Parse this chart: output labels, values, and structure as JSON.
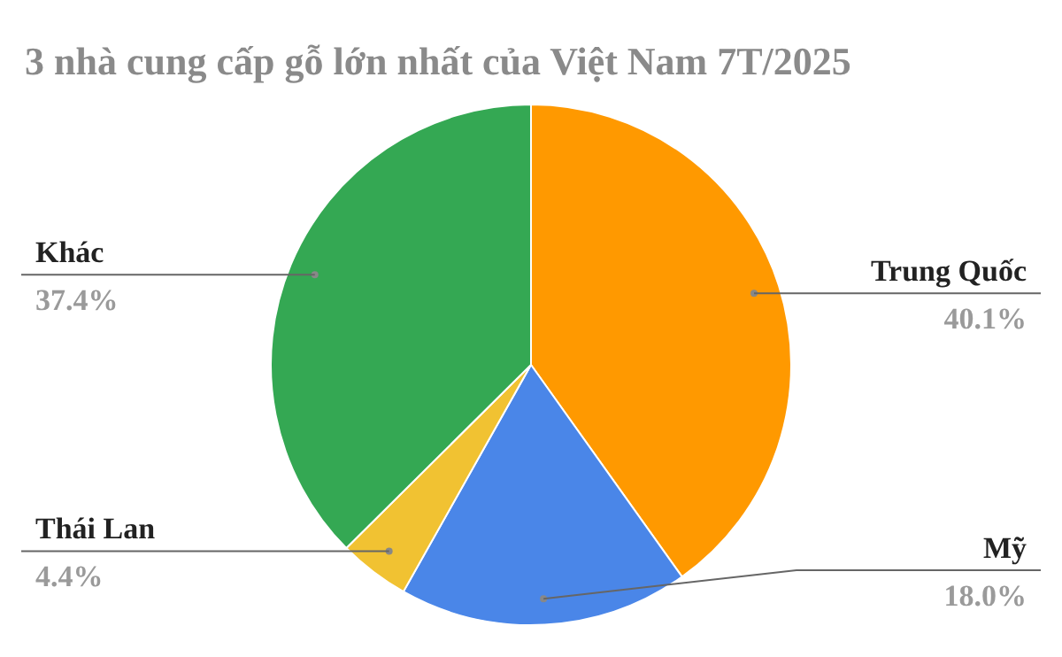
{
  "chart_data": {
    "type": "pie",
    "title": "3 nhà cung cấp gỗ lớn nhất của Việt Nam 7T/2025",
    "categories": [
      "Trung Quốc",
      "Mỹ",
      "Thái Lan",
      "Khác"
    ],
    "values": [
      40.1,
      18.0,
      4.4,
      37.4
    ],
    "value_labels": [
      "40.1%",
      "18.0%",
      "4.4%",
      "37.4%"
    ],
    "colors": [
      "#ff9900",
      "#4a86e8",
      "#f1c232",
      "#34a853"
    ]
  }
}
